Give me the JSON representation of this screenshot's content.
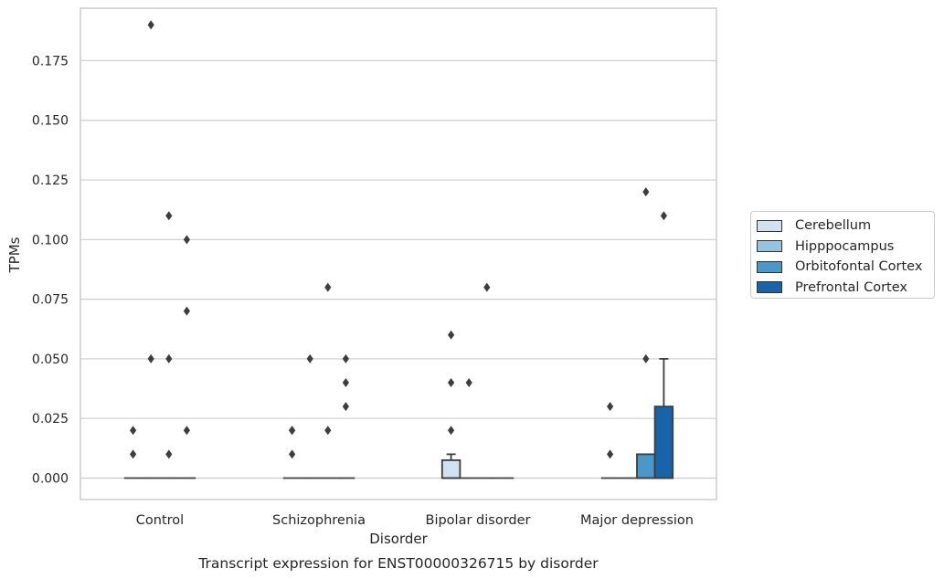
{
  "chart_data": {
    "type": "box",
    "title": "Transcript expression for ENST00000326715 by disorder",
    "xlabel": "Disorder",
    "ylabel": "TPMs",
    "ylim": [
      -0.009,
      0.197
    ],
    "yticks": [
      "0.000",
      "0.025",
      "0.050",
      "0.075",
      "0.100",
      "0.125",
      "0.150",
      "0.175"
    ],
    "ytick_values": [
      0.0,
      0.025,
      0.05,
      0.075,
      0.1,
      0.125,
      0.15,
      0.175
    ],
    "grid": true,
    "legend_position": "right",
    "categories": [
      "Control",
      "Schizophrenia",
      "Bipolar disorder",
      "Major depression"
    ],
    "series": [
      {
        "name": "Cerebellum",
        "color": "#d0e1f2",
        "boxes": [
          {
            "q1": 0,
            "median": 0,
            "q3": 0,
            "whisker_low": 0,
            "whisker_high": 0,
            "outliers": [
              0.01,
              0.02
            ]
          },
          {
            "q1": 0,
            "median": 0,
            "q3": 0,
            "whisker_low": 0,
            "whisker_high": 0,
            "outliers": [
              0.01,
              0.02,
              0.02
            ]
          },
          {
            "q1": 0,
            "median": 0,
            "q3": 0.0075,
            "whisker_low": 0,
            "whisker_high": 0.01,
            "outliers": [
              0.02,
              0.04,
              0.06
            ]
          },
          {
            "q1": 0,
            "median": 0,
            "q3": 0,
            "whisker_low": 0,
            "whisker_high": 0,
            "outliers": [
              0.01,
              0.03
            ]
          }
        ]
      },
      {
        "name": "Hipppocampus",
        "color": "#94c4df",
        "boxes": [
          {
            "q1": 0,
            "median": 0,
            "q3": 0,
            "whisker_low": 0,
            "whisker_high": 0,
            "outliers": [
              0.05,
              0.19
            ]
          },
          {
            "q1": 0,
            "median": 0,
            "q3": 0,
            "whisker_low": 0,
            "whisker_high": 0,
            "outliers": [
              0.05
            ]
          },
          {
            "q1": 0,
            "median": 0,
            "q3": 0,
            "whisker_low": 0,
            "whisker_high": 0,
            "outliers": [
              0.04
            ]
          },
          {
            "q1": 0,
            "median": 0,
            "q3": 0,
            "whisker_low": 0,
            "whisker_high": 0,
            "outliers": []
          }
        ]
      },
      {
        "name": "Orbitofontal Cortex",
        "color": "#4a98c9",
        "boxes": [
          {
            "q1": 0,
            "median": 0,
            "q3": 0,
            "whisker_low": 0,
            "whisker_high": 0,
            "outliers": [
              0.01,
              0.05,
              0.11
            ]
          },
          {
            "q1": 0,
            "median": 0,
            "q3": 0,
            "whisker_low": 0,
            "whisker_high": 0,
            "outliers": [
              0.02,
              0.08
            ]
          },
          {
            "q1": 0,
            "median": 0,
            "q3": 0,
            "whisker_low": 0,
            "whisker_high": 0,
            "outliers": [
              0.08
            ]
          },
          {
            "q1": 0,
            "median": 0,
            "q3": 0.01,
            "whisker_low": 0,
            "whisker_high": 0.01,
            "outliers": [
              0.05,
              0.12
            ]
          }
        ]
      },
      {
        "name": "Prefrontal Cortex",
        "color": "#1764ab",
        "boxes": [
          {
            "q1": 0,
            "median": 0,
            "q3": 0,
            "whisker_low": 0,
            "whisker_high": 0,
            "outliers": [
              0.02,
              0.07,
              0.1
            ]
          },
          {
            "q1": 0,
            "median": 0,
            "q3": 0,
            "whisker_low": 0,
            "whisker_high": 0,
            "outliers": [
              0.03,
              0.04,
              0.05
            ]
          },
          {
            "q1": 0,
            "median": 0,
            "q3": 0,
            "whisker_low": 0,
            "whisker_high": 0,
            "outliers": []
          },
          {
            "q1": 0,
            "median": 0,
            "q3": 0.03,
            "whisker_low": 0,
            "whisker_high": 0.05,
            "outliers": [
              0.11
            ]
          }
        ]
      }
    ]
  }
}
